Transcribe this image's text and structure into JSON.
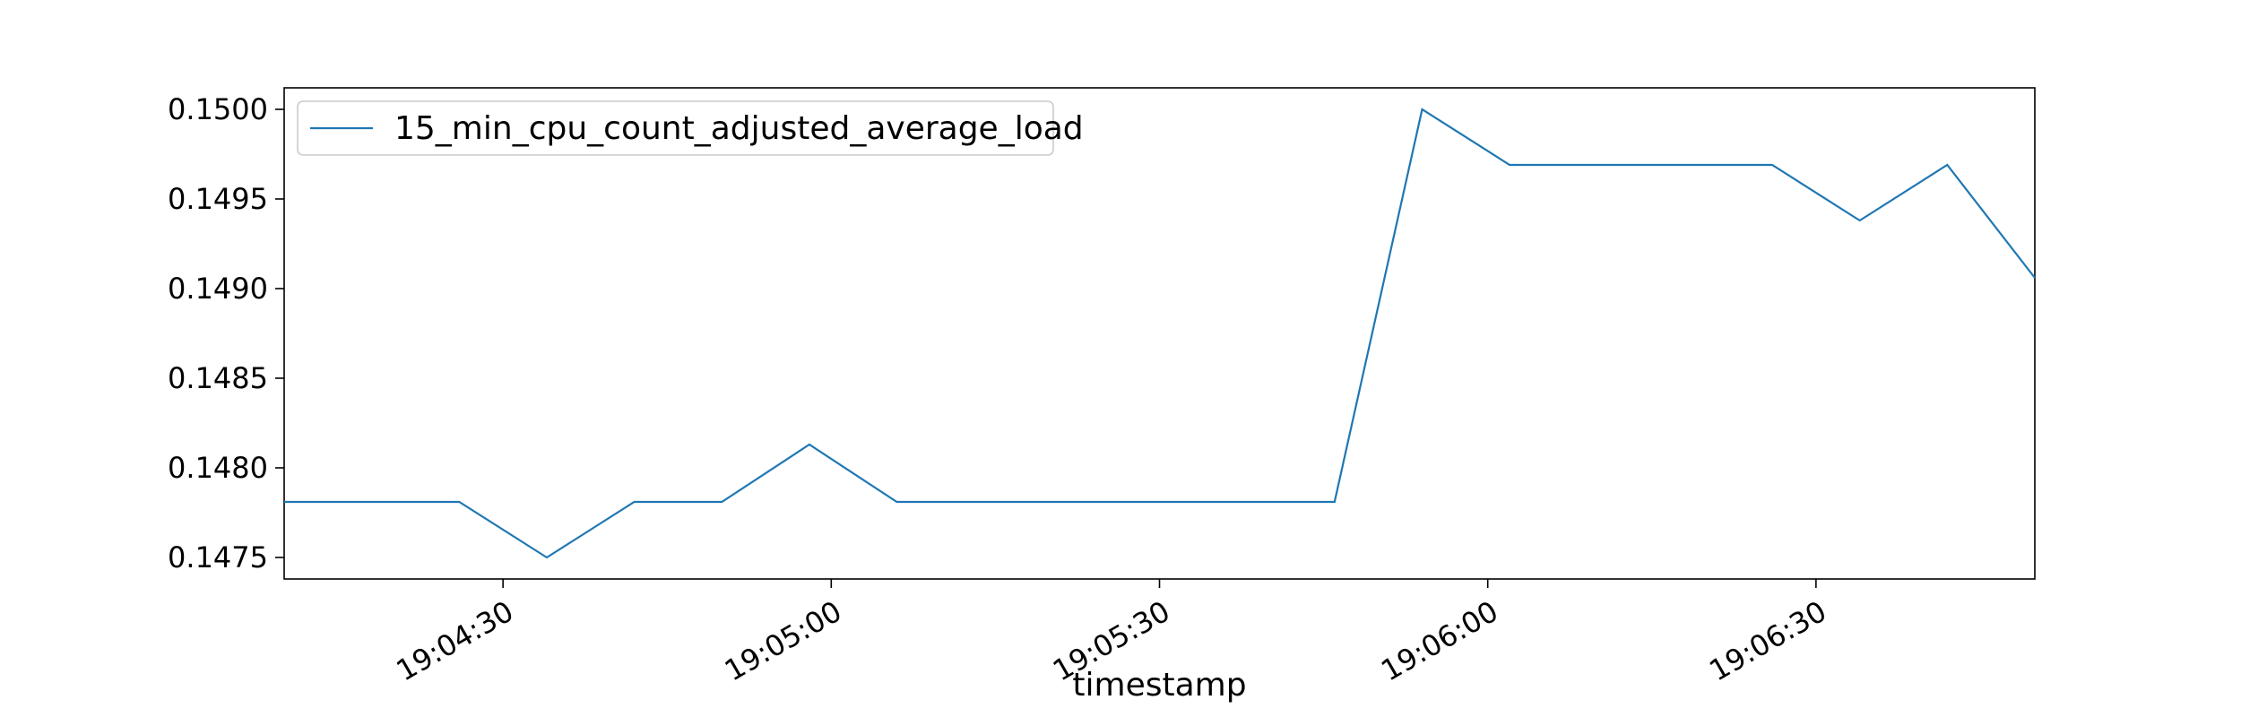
{
  "chart_data": {
    "type": "line",
    "title": "",
    "xlabel": "timestamp",
    "ylabel": "",
    "x": [
      "19:04:10",
      "19:04:18",
      "19:04:26",
      "19:04:34",
      "19:04:42",
      "19:04:50",
      "19:04:58",
      "19:05:06",
      "19:05:14",
      "19:05:22",
      "19:05:30",
      "19:05:38",
      "19:05:46",
      "19:05:54",
      "19:06:02",
      "19:06:10",
      "19:06:18",
      "19:06:26",
      "19:06:34",
      "19:06:42",
      "19:06:50"
    ],
    "series": [
      {
        "name": "15_min_cpu_count_adjusted_average_load",
        "color": "#1f77b4",
        "values": [
          0.14781,
          0.14781,
          0.14781,
          0.1475,
          0.14781,
          0.14781,
          0.14813,
          0.14781,
          0.14781,
          0.14781,
          0.14781,
          0.14781,
          0.14781,
          0.15,
          0.14969,
          0.14969,
          0.14969,
          0.14969,
          0.14938,
          0.14969,
          0.14906
        ]
      }
    ],
    "ylim": [
      0.14738,
      0.15012
    ],
    "xlim": [
      "19:04:10",
      "19:06:50"
    ],
    "y_ticks": [
      "0.1475",
      "0.1480",
      "0.1485",
      "0.1490",
      "0.1495",
      "0.1500"
    ],
    "x_ticks": [
      "19:04:30",
      "19:05:00",
      "19:05:30",
      "19:06:00",
      "19:06:30"
    ],
    "legend_position": "top-left",
    "grid": false
  }
}
